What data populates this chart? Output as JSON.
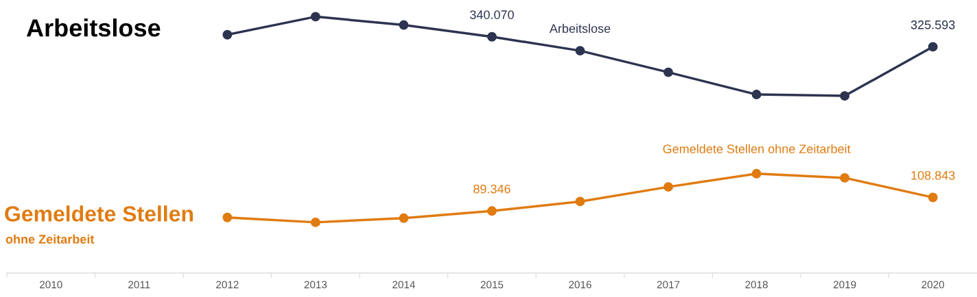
{
  "chart_data": {
    "type": "line",
    "tick_labels": "x",
    "grid": false,
    "legend": false,
    "marker": "circle",
    "line_style": "solid",
    "categories": [
      "2010",
      "2011",
      "2012",
      "2013",
      "2014",
      "2015",
      "2016",
      "2017",
      "2018",
      "2019",
      "2020"
    ],
    "series": [
      {
        "name": "Arbeitslose",
        "color": "#2d3450",
        "values": [
          null,
          null,
          343000,
          369000,
          357000,
          340070,
          320000,
          289000,
          257000,
          255000,
          325593
        ],
        "value_labels": [
          null,
          null,
          null,
          null,
          null,
          "340.070",
          null,
          null,
          null,
          null,
          "325.593"
        ]
      },
      {
        "name": "Gemeldete Stellen ohne Zeitarbeit",
        "color": "#e07b10",
        "values": [
          null,
          null,
          80000,
          73000,
          79000,
          89346,
          103000,
          124000,
          143000,
          137000,
          108843
        ],
        "value_labels": [
          null,
          null,
          null,
          null,
          null,
          "89.346",
          null,
          null,
          null,
          null,
          "108.843"
        ]
      }
    ],
    "annotations": [
      "Arbeitslose",
      "Gemeldete Stellen",
      "ohne Zeitarbeit"
    ]
  }
}
